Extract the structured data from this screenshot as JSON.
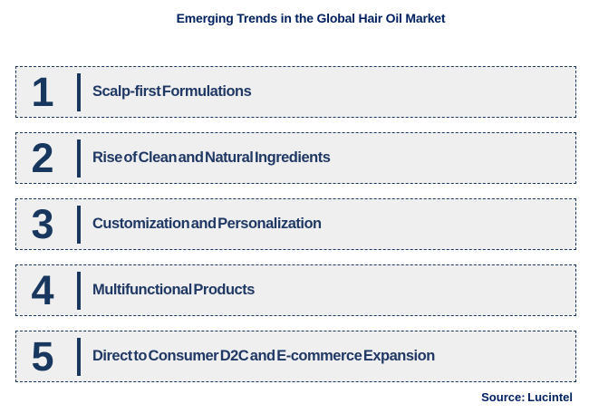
{
  "title": {
    "text": "Emerging Trends in the Global Hair Oil Market"
  },
  "trends": [
    {
      "number": "1",
      "label": "Scalp-first Formulations"
    },
    {
      "number": "2",
      "label": "Rise of Clean and Natural Ingredients"
    },
    {
      "number": "3",
      "label": "Customization and Personalization"
    },
    {
      "number": "4",
      "label": "Multifunctional Products"
    },
    {
      "number": "5",
      "label": "Direct to Consumer D2C and E-commerce Expansion"
    }
  ],
  "source": {
    "text": "Source: Lucintel"
  },
  "colors": {
    "navy_accent": "#17375e",
    "label_navy": "#1f3864",
    "title_blue": "#002060",
    "row_background": "#efefef",
    "page_background": "#ffffff"
  }
}
